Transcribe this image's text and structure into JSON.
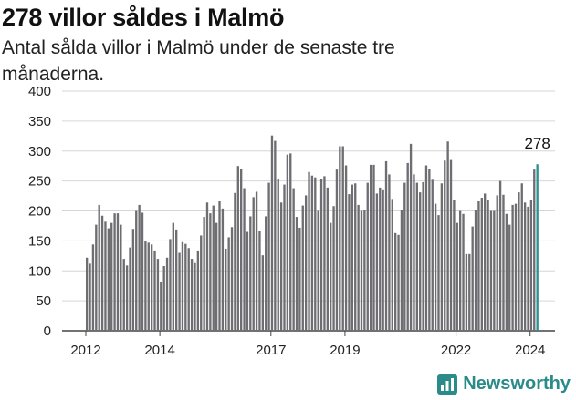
{
  "header": {
    "title": "278 villor såldes i Malmö",
    "subtitle": "Antal sålda villor i Malmö under de senaste tre månaderna."
  },
  "branding": {
    "name": "Newsworthy",
    "icon": "newsworthy-logo-icon",
    "color": "#2a8b8a"
  },
  "colors": {
    "bar": "#6e6d72",
    "highlight": "#2a9190",
    "grid": "#d6d6d6"
  },
  "chart_data": {
    "type": "bar",
    "title": "",
    "xlabel": "",
    "ylabel": "",
    "ylim": [
      0,
      400
    ],
    "yticks": [
      "0",
      "50",
      "100",
      "150",
      "200",
      "250",
      "300",
      "350",
      "400"
    ],
    "xticks": [
      "2012",
      "2014",
      "2017",
      "2019",
      "2022",
      "2024"
    ],
    "grid": true,
    "annotation": "278",
    "values": [
      122,
      112,
      144,
      177,
      210,
      192,
      182,
      171,
      180,
      196,
      196,
      177,
      120,
      109,
      139,
      170,
      200,
      210,
      197,
      150,
      147,
      144,
      134,
      120,
      81,
      108,
      122,
      153,
      180,
      169,
      130,
      148,
      145,
      138,
      120,
      113,
      134,
      159,
      190,
      214,
      196,
      209,
      180,
      216,
      204,
      137,
      156,
      173,
      230,
      275,
      270,
      238,
      165,
      191,
      223,
      232,
      167,
      126,
      191,
      247,
      326,
      317,
      253,
      214,
      244,
      294,
      296,
      238,
      190,
      172,
      209,
      226,
      265,
      259,
      256,
      200,
      253,
      258,
      239,
      180,
      208,
      269,
      308,
      308,
      276,
      228,
      244,
      246,
      210,
      200,
      201,
      247,
      277,
      277,
      229,
      239,
      236,
      283,
      261,
      220,
      163,
      160,
      202,
      247,
      280,
      312,
      261,
      247,
      231,
      248,
      276,
      270,
      252,
      212,
      193,
      246,
      284,
      316,
      285,
      218,
      180,
      200,
      195,
      128,
      128,
      174,
      202,
      216,
      222,
      229,
      218,
      200,
      200,
      226,
      250,
      227,
      195,
      177,
      210,
      212,
      231,
      246,
      214,
      207,
      219,
      269,
      278
    ]
  }
}
